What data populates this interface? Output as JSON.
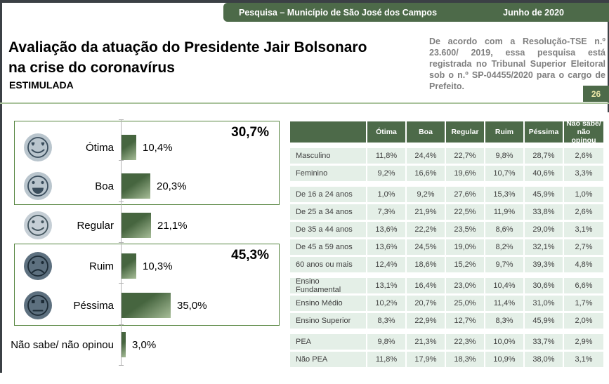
{
  "header": {
    "bar_title": "Pesquisa – Município de São José dos Campos",
    "bar_date": "Junho de 2020",
    "title_line1": "Avaliação da atuação do Presidente Jair Bolsonaro",
    "title_line2": "na crise do coronavírus",
    "subtitle": "ESTIMULADA",
    "tse_note": "De acordo com a Resolução-TSE n.º 23.600/ 2019, essa pesquisa está registrada no Tribunal Superior Eleitoral sob o n.º SP-04455/2020 para o cargo de Prefeito.",
    "page_number": "26"
  },
  "colors": {
    "brand_green": "#4d6a49",
    "row_green": "#e4efe7",
    "bar_dark": "#46653f",
    "bar_light": "#a7bd98",
    "box_border": "#55843f",
    "rule_green": "#a9c29b",
    "badge_text": "#e9e5a6",
    "note_gray": "#7f7f7f",
    "edge_dark": "#3b4045",
    "face_light": "#b9c5cd",
    "face_lighter": "#c5ced5",
    "face_dark": "#5d707f"
  },
  "chart_data": {
    "type": "bar",
    "orientation": "horizontal",
    "title": "Avaliação da atuação do Presidente Jair Bolsonaro na crise do coronavírus — ESTIMULADA",
    "unit": "%",
    "xlim": [
      0,
      100
    ],
    "categories": [
      "Ótima",
      "Boa",
      "Regular",
      "Ruim",
      "Péssima",
      "Não sabe/ não opinou"
    ],
    "values": [
      10.4,
      20.3,
      21.1,
      10.3,
      35.0,
      3.0
    ],
    "rows": [
      {
        "label": "Ótima",
        "value": 10.4,
        "value_label": "10,4%",
        "icon": "heart-eyes-face-icon",
        "mood": "light"
      },
      {
        "label": "Boa",
        "value": 20.3,
        "value_label": "20,3%",
        "icon": "grinning-face-icon",
        "mood": "light"
      },
      {
        "label": "Regular",
        "value": 21.1,
        "value_label": "21,1%",
        "icon": "smiling-face-icon",
        "mood": "lighter"
      },
      {
        "label": "Ruim",
        "value": 10.3,
        "value_label": "10,3%",
        "icon": "frowning-face-icon",
        "mood": "dark"
      },
      {
        "label": "Péssima",
        "value": 35.0,
        "value_label": "35,0%",
        "icon": "neutral-face-icon",
        "mood": "dark"
      },
      {
        "label": "Não sabe/ não opinou",
        "value": 3.0,
        "value_label": "3,0%",
        "icon": null,
        "mood": null
      }
    ],
    "groups": [
      {
        "members": [
          "Ótima",
          "Boa"
        ],
        "total": 30.7,
        "total_label": "30,7%"
      },
      {
        "members": [
          "Ruim",
          "Péssima"
        ],
        "total": 45.3,
        "total_label": "45,3%"
      }
    ]
  },
  "table": {
    "header": [
      "",
      "Ótima",
      "Boa",
      "Regular",
      "Ruim",
      "Péssima",
      "Não sabe/\nnão opinou"
    ],
    "groups": [
      {
        "rows": [
          {
            "label": "Masculino",
            "values": [
              "11,8%",
              "24,4%",
              "22,7%",
              "9,8%",
              "28,7%",
              "2,6%"
            ]
          },
          {
            "label": "Feminino",
            "values": [
              "9,2%",
              "16,6%",
              "19,6%",
              "10,7%",
              "40,6%",
              "3,3%"
            ]
          }
        ]
      },
      {
        "rows": [
          {
            "label": "De 16 a 24 anos",
            "values": [
              "1,0%",
              "9,2%",
              "27,6%",
              "15,3%",
              "45,9%",
              "1,0%"
            ]
          },
          {
            "label": "De 25 a 34 anos",
            "values": [
              "7,3%",
              "21,9%",
              "22,5%",
              "11,9%",
              "33,8%",
              "2,6%"
            ]
          },
          {
            "label": "De 35 a 44 anos",
            "values": [
              "13,6%",
              "22,2%",
              "23,5%",
              "8,6%",
              "29,0%",
              "3,1%"
            ]
          },
          {
            "label": "De 45 a 59 anos",
            "values": [
              "13,6%",
              "24,5%",
              "19,0%",
              "8,2%",
              "32,1%",
              "2,7%"
            ]
          },
          {
            "label": "60 anos ou mais",
            "values": [
              "12,4%",
              "18,6%",
              "15,2%",
              "9,7%",
              "39,3%",
              "4,8%"
            ]
          }
        ]
      },
      {
        "rows": [
          {
            "label": "Ensino Fundamental",
            "values": [
              "13,1%",
              "16,4%",
              "23,0%",
              "10,4%",
              "30,6%",
              "6,6%"
            ]
          },
          {
            "label": "Ensino Médio",
            "values": [
              "10,2%",
              "20,7%",
              "25,0%",
              "11,4%",
              "31,0%",
              "1,7%"
            ]
          },
          {
            "label": "Ensino Superior",
            "values": [
              "8,3%",
              "22,9%",
              "12,7%",
              "8,3%",
              "45,9%",
              "2,0%"
            ]
          }
        ]
      },
      {
        "rows": [
          {
            "label": "PEA",
            "values": [
              "9,8%",
              "21,3%",
              "22,3%",
              "10,0%",
              "33,7%",
              "2,9%"
            ]
          },
          {
            "label": "Não PEA",
            "values": [
              "11,8%",
              "17,9%",
              "18,3%",
              "10,9%",
              "38,0%",
              "3,1%"
            ]
          }
        ]
      }
    ]
  }
}
